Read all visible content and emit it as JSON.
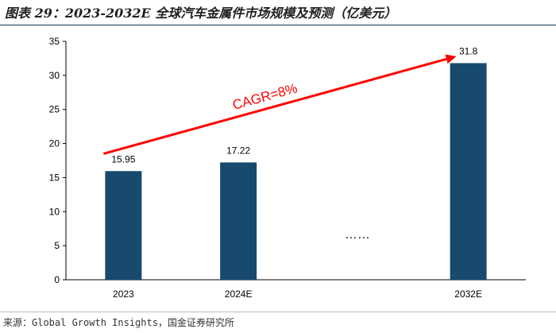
{
  "title": "图表 29：2023-2032E 全球汽车金属件市场规模及预测（亿美元）",
  "source": "来源：Global Growth Insights，国金证券研究所",
  "chart_data": {
    "type": "bar",
    "title": "",
    "xlabel": "",
    "ylabel": "",
    "categories": [
      "2023",
      "2024E",
      "",
      "2032E"
    ],
    "values": [
      15.95,
      17.22,
      null,
      31.8
    ],
    "data_labels": [
      "15.95",
      "17.22",
      "",
      "31.8"
    ],
    "ylim": [
      0,
      35
    ],
    "yticks": [
      0,
      5,
      10,
      15,
      20,
      25,
      30,
      35
    ],
    "grid": false,
    "ellipsis": "……",
    "annotation": {
      "text": "CAGR=8%",
      "arrow_from": {
        "category": "2023",
        "y": 18.5
      },
      "arrow_to": {
        "category": "2032E",
        "y": 32.8
      }
    },
    "colors": {
      "bar": "#174a6e",
      "arrow": "#ff0000"
    }
  }
}
